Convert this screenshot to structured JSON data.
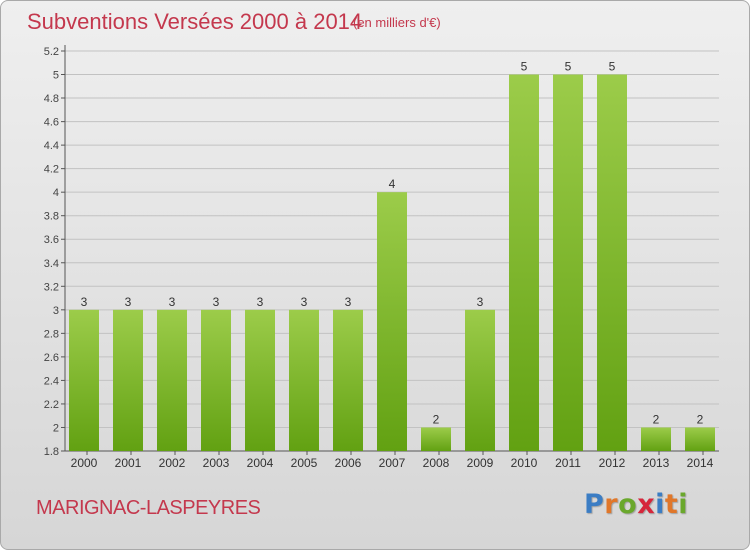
{
  "header": {
    "title": "Subventions Versées 2000 à 2014",
    "subtitle": "(en milliers d'€)"
  },
  "footer": {
    "commune": "MARIGNAC-LASPEYRES",
    "logo": {
      "letters": [
        "P",
        "r",
        "o",
        "x",
        "i",
        "t",
        "i"
      ],
      "colors": [
        "#3b7dc4",
        "#e0772a",
        "#6aa82c",
        "#d6263b",
        "#3b7dc4",
        "#e0772a",
        "#6aa82c"
      ]
    }
  },
  "chart_data": {
    "type": "bar",
    "title": "Subventions Versées 2000 à 2014",
    "subtitle": "(en milliers d'€)",
    "categories": [
      "2000",
      "2001",
      "2002",
      "2003",
      "2004",
      "2005",
      "2006",
      "2007",
      "2008",
      "2009",
      "2010",
      "2011",
      "2012",
      "2013",
      "2014"
    ],
    "values": [
      3,
      3,
      3,
      3,
      3,
      3,
      3,
      4,
      2,
      3,
      5,
      5,
      5,
      2,
      2
    ],
    "data_labels": [
      "3",
      "3",
      "3",
      "3",
      "3",
      "3",
      "3",
      "4",
      "2",
      "3",
      "5",
      "5",
      "5",
      "2",
      "2"
    ],
    "y_tick_labels": [
      "1.8",
      "2",
      "2.2",
      "2.4",
      "2.6",
      "2.8",
      "3",
      "3.2",
      "3.4",
      "3.6",
      "3.8",
      "4",
      "4.2",
      "4.4",
      "4.6",
      "4.8",
      "5",
      "5.2"
    ],
    "y_tick_values": [
      1.8,
      2.0,
      2.2,
      2.4,
      2.6,
      2.8,
      3.0,
      3.2,
      3.4,
      3.6,
      3.8,
      4.0,
      4.2,
      4.4,
      4.6,
      4.8,
      5.0,
      5.2
    ],
    "ylim": [
      1.8,
      5.2
    ],
    "grid": true,
    "bar_color_top": "#9ccc4a",
    "bar_color_bottom": "#62a112"
  }
}
